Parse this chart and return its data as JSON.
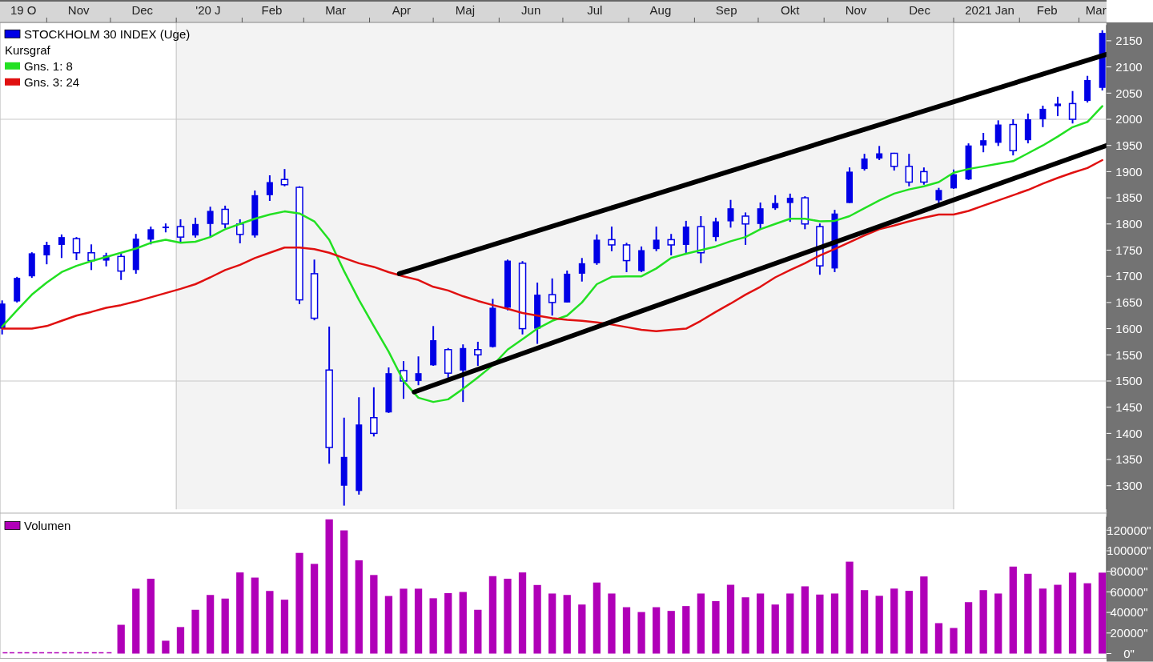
{
  "chart_data": [
    {
      "type": "candlestick",
      "annotations": [
        "Kursgraf"
      ],
      "x": [
        "2019-10-11",
        "2019-10-18",
        "2019-10-25",
        "2019-11-01",
        "2019-11-08",
        "2019-11-15",
        "2019-11-22",
        "2019-11-29",
        "2019-12-06",
        "2019-12-13",
        "2019-12-20",
        "2019-12-27",
        "2020-01-03",
        "2020-01-10",
        "2020-01-17",
        "2020-01-24",
        "2020-01-31",
        "2020-02-07",
        "2020-02-14",
        "2020-02-21",
        "2020-02-28",
        "2020-03-06",
        "2020-03-13",
        "2020-03-20",
        "2020-03-27",
        "2020-04-03",
        "2020-04-10",
        "2020-04-17",
        "2020-04-24",
        "2020-05-01",
        "2020-05-08",
        "2020-05-15",
        "2020-05-22",
        "2020-05-29",
        "2020-06-05",
        "2020-06-12",
        "2020-06-19",
        "2020-06-26",
        "2020-07-03",
        "2020-07-10",
        "2020-07-17",
        "2020-07-24",
        "2020-07-31",
        "2020-08-07",
        "2020-08-14",
        "2020-08-21",
        "2020-08-28",
        "2020-09-04",
        "2020-09-11",
        "2020-09-18",
        "2020-09-25",
        "2020-10-02",
        "2020-10-09",
        "2020-10-16",
        "2020-10-23",
        "2020-10-30",
        "2020-11-06",
        "2020-11-13",
        "2020-11-20",
        "2020-11-27",
        "2020-12-04",
        "2020-12-11",
        "2020-12-18",
        "2020-12-25",
        "2021-01-01",
        "2021-01-08",
        "2021-01-15",
        "2021-01-22",
        "2021-01-29",
        "2021-02-05",
        "2021-02-12",
        "2021-02-19",
        "2021-02-26",
        "2021-03-05",
        "2021-03-12"
      ],
      "series": [
        {
          "name": "STOCKHOLM 30 INDEX (Uge)",
          "color": "#0000e6",
          "ohlc": [
            [
              1600,
              1654,
              1589,
              1648
            ],
            [
              1652,
              1699,
              1650,
              1697
            ],
            [
              1700,
              1746,
              1697,
              1744
            ],
            [
              1740,
              1766,
              1723,
              1760
            ],
            [
              1760,
              1780,
              1735,
              1775
            ],
            [
              1772,
              1775,
              1731,
              1745
            ],
            [
              1745,
              1761,
              1712,
              1730
            ],
            [
              1730,
              1745,
              1719,
              1740
            ],
            [
              1738,
              1746,
              1693,
              1710
            ],
            [
              1712,
              1781,
              1705,
              1772
            ],
            [
              1770,
              1795,
              1761,
              1790
            ],
            [
              1792,
              1801,
              1784,
              1795
            ],
            [
              1795,
              1809,
              1766,
              1775
            ],
            [
              1778,
              1812,
              1774,
              1800
            ],
            [
              1800,
              1833,
              1774,
              1825
            ],
            [
              1828,
              1835,
              1792,
              1800
            ],
            [
              1800,
              1809,
              1763,
              1780
            ],
            [
              1778,
              1864,
              1774,
              1855
            ],
            [
              1855,
              1893,
              1844,
              1880
            ],
            [
              1885,
              1905,
              1872,
              1875
            ],
            [
              1870,
              1872,
              1647,
              1655
            ],
            [
              1705,
              1732,
              1616,
              1620
            ],
            [
              1521,
              1604,
              1342,
              1373
            ],
            [
              1300,
              1430,
              1262,
              1355
            ],
            [
              1290,
              1469,
              1283,
              1417
            ],
            [
              1430,
              1488,
              1394,
              1400
            ],
            [
              1440,
              1526,
              1439,
              1515
            ],
            [
              1520,
              1538,
              1466,
              1500
            ],
            [
              1500,
              1547,
              1492,
              1515
            ],
            [
              1530,
              1605,
              1529,
              1578
            ],
            [
              1560,
              1563,
              1503,
              1515
            ],
            [
              1520,
              1570,
              1460,
              1563
            ],
            [
              1560,
              1575,
              1529,
              1550
            ],
            [
              1565,
              1657,
              1564,
              1640
            ],
            [
              1640,
              1732,
              1635,
              1730
            ],
            [
              1725,
              1729,
              1589,
              1600
            ],
            [
              1600,
              1688,
              1571,
              1665
            ],
            [
              1665,
              1696,
              1625,
              1650
            ],
            [
              1650,
              1711,
              1650,
              1705
            ],
            [
              1705,
              1735,
              1690,
              1725
            ],
            [
              1725,
              1780,
              1722,
              1770
            ],
            [
              1770,
              1795,
              1748,
              1760
            ],
            [
              1760,
              1764,
              1708,
              1730
            ],
            [
              1710,
              1757,
              1708,
              1750
            ],
            [
              1752,
              1795,
              1748,
              1770
            ],
            [
              1770,
              1781,
              1740,
              1760
            ],
            [
              1760,
              1806,
              1743,
              1795
            ],
            [
              1795,
              1815,
              1725,
              1745
            ],
            [
              1775,
              1812,
              1767,
              1805
            ],
            [
              1805,
              1846,
              1793,
              1830
            ],
            [
              1815,
              1822,
              1760,
              1800
            ],
            [
              1800,
              1841,
              1789,
              1830
            ],
            [
              1830,
              1855,
              1827,
              1840
            ],
            [
              1840,
              1858,
              1804,
              1850
            ],
            [
              1850,
              1853,
              1790,
              1800
            ],
            [
              1795,
              1801,
              1703,
              1720
            ],
            [
              1715,
              1827,
              1708,
              1820
            ],
            [
              1840,
              1908,
              1840,
              1900
            ],
            [
              1905,
              1934,
              1902,
              1925
            ],
            [
              1925,
              1949,
              1922,
              1935
            ],
            [
              1935,
              1936,
              1902,
              1910
            ],
            [
              1910,
              1934,
              1872,
              1880
            ],
            [
              1900,
              1908,
              1875,
              1880
            ],
            [
              1845,
              1869,
              1836,
              1865
            ],
            [
              1868,
              1904,
              1867,
              1895
            ],
            [
              1885,
              1954,
              1884,
              1950
            ],
            [
              1950,
              1974,
              1937,
              1960
            ],
            [
              1955,
              1998,
              1949,
              1990
            ],
            [
              1990,
              2000,
              1931,
              1940
            ],
            [
              1960,
              2011,
              1954,
              2000
            ],
            [
              2000,
              2026,
              1985,
              2020
            ],
            [
              2025,
              2043,
              2006,
              2030
            ],
            [
              2030,
              2054,
              1992,
              2000
            ],
            [
              2035,
              2083,
              2032,
              2075
            ],
            [
              2060,
              2170,
              2055,
              2165
            ]
          ]
        },
        {
          "type": "line",
          "name": "Gns. 1: 8",
          "color": "#22e022",
          "values": [
            1604,
            1635,
            1665,
            1688,
            1708,
            1720,
            1729,
            1737,
            1745,
            1753,
            1764,
            1770,
            1764,
            1766,
            1775,
            1790,
            1800,
            1810,
            1818,
            1824,
            1820,
            1805,
            1770,
            1710,
            1655,
            1605,
            1556,
            1500,
            1468,
            1460,
            1465,
            1485,
            1507,
            1530,
            1560,
            1580,
            1600,
            1615,
            1625,
            1650,
            1685,
            1699,
            1700,
            1700,
            1715,
            1735,
            1743,
            1750,
            1757,
            1767,
            1775,
            1790,
            1800,
            1810,
            1810,
            1805,
            1806,
            1815,
            1830,
            1845,
            1858,
            1866,
            1872,
            1880,
            1898,
            1905,
            1910,
            1915,
            1920,
            1935,
            1950,
            1967,
            1985,
            1995,
            2025
          ]
        },
        {
          "type": "line",
          "name": "Gns. 3: 24",
          "color": "#e01010",
          "values": [
            1600,
            1600,
            1600,
            1605,
            1615,
            1625,
            1632,
            1640,
            1645,
            1652,
            1660,
            1668,
            1676,
            1685,
            1698,
            1712,
            1722,
            1735,
            1745,
            1755,
            1755,
            1752,
            1745,
            1735,
            1725,
            1718,
            1708,
            1700,
            1693,
            1680,
            1673,
            1662,
            1653,
            1645,
            1638,
            1630,
            1625,
            1620,
            1617,
            1615,
            1612,
            1608,
            1603,
            1598,
            1595,
            1598,
            1600,
            1615,
            1632,
            1648,
            1665,
            1680,
            1698,
            1712,
            1725,
            1740,
            1752,
            1765,
            1778,
            1790,
            1797,
            1805,
            1812,
            1818,
            1818,
            1825,
            1835,
            1845,
            1855,
            1865,
            1877,
            1888,
            1898,
            1907,
            1922
          ]
        },
        {
          "type": "line",
          "color": "#000000",
          "x": [
            "2020-04-15",
            "2021-03-14"
          ],
          "values": [
            1705,
            2124
          ]
        },
        {
          "type": "line",
          "color": "#000000",
          "x": [
            "2020-04-22",
            "2021-03-14"
          ],
          "values": [
            1479,
            1950
          ]
        }
      ],
      "xlim": [
        "2019-10-10",
        "2021-03-14"
      ],
      "xticks": [
        {
          "value": "2019-10-21",
          "label": "19 O"
        },
        {
          "value": "2019-11-01",
          "label": null
        },
        {
          "value": "2019-11-16",
          "label": "Nov"
        },
        {
          "value": "2019-12-01",
          "label": null
        },
        {
          "value": "2019-12-16",
          "label": "Dec"
        },
        {
          "value": "2020-01-01",
          "label": null
        },
        {
          "value": "2020-01-16",
          "label": "'20 J"
        },
        {
          "value": "2020-02-01",
          "label": null
        },
        {
          "value": "2020-02-15",
          "label": "Feb"
        },
        {
          "value": "2020-03-01",
          "label": null
        },
        {
          "value": "2020-03-16",
          "label": "Mar"
        },
        {
          "value": "2020-04-01",
          "label": null
        },
        {
          "value": "2020-04-16",
          "label": "Apr"
        },
        {
          "value": "2020-05-01",
          "label": null
        },
        {
          "value": "2020-05-16",
          "label": "Maj"
        },
        {
          "value": "2020-06-01",
          "label": null
        },
        {
          "value": "2020-06-16",
          "label": "Jun"
        },
        {
          "value": "2020-07-01",
          "label": null
        },
        {
          "value": "2020-07-16",
          "label": "Jul"
        },
        {
          "value": "2020-08-01",
          "label": null
        },
        {
          "value": "2020-08-16",
          "label": "Aug"
        },
        {
          "value": "2020-09-01",
          "label": null
        },
        {
          "value": "2020-09-16",
          "label": "Sep"
        },
        {
          "value": "2020-10-01",
          "label": null
        },
        {
          "value": "2020-10-16",
          "label": "Okt"
        },
        {
          "value": "2020-11-01",
          "label": null
        },
        {
          "value": "2020-11-16",
          "label": "Nov"
        },
        {
          "value": "2020-12-01",
          "label": null
        },
        {
          "value": "2020-12-16",
          "label": "Dec"
        },
        {
          "value": "2021-01-01",
          "label": null
        },
        {
          "value": "2021-01-18",
          "label": "2021 Jan"
        },
        {
          "value": "2021-02-01",
          "label": null
        },
        {
          "value": "2021-02-14",
          "label": "Feb"
        },
        {
          "value": "2021-03-01",
          "label": null
        },
        {
          "value": "2021-03-09",
          "label": "Mar"
        }
      ],
      "ylim": [
        1255,
        2180
      ],
      "yticks": [
        1300,
        1350,
        1400,
        1450,
        1500,
        1550,
        1600,
        1650,
        1700,
        1750,
        1800,
        1850,
        1900,
        1950,
        2000,
        2050,
        2100,
        2150
      ],
      "bands": [
        {
          "axis": "x",
          "from": "2020-01-01",
          "to": "2021-01-01",
          "color": "#f3f3f3"
        }
      ],
      "ref_lines": [
        {
          "axis": "x",
          "value": "2020-01-01",
          "color": "#c8c8c8"
        },
        {
          "axis": "x",
          "value": "2021-01-01",
          "color": "#c8c8c8"
        },
        {
          "axis": "y",
          "value": 1500,
          "color": "#c8c8c8"
        },
        {
          "axis": "y",
          "value": 2000,
          "color": "#c8c8c8"
        }
      ],
      "legend": "top left"
    },
    {
      "type": "bar",
      "x": [
        "2019-10-11",
        "2019-10-18",
        "2019-10-25",
        "2019-11-01",
        "2019-11-08",
        "2019-11-15",
        "2019-11-22",
        "2019-11-29",
        "2019-12-06",
        "2019-12-13",
        "2019-12-20",
        "2019-12-27",
        "2020-01-03",
        "2020-01-10",
        "2020-01-17",
        "2020-01-24",
        "2020-01-31",
        "2020-02-07",
        "2020-02-14",
        "2020-02-21",
        "2020-02-28",
        "2020-03-06",
        "2020-03-13",
        "2020-03-20",
        "2020-03-27",
        "2020-04-03",
        "2020-04-10",
        "2020-04-17",
        "2020-04-24",
        "2020-05-01",
        "2020-05-08",
        "2020-05-15",
        "2020-05-22",
        "2020-05-29",
        "2020-06-05",
        "2020-06-12",
        "2020-06-19",
        "2020-06-26",
        "2020-07-03",
        "2020-07-10",
        "2020-07-17",
        "2020-07-24",
        "2020-07-31",
        "2020-08-07",
        "2020-08-14",
        "2020-08-21",
        "2020-08-28",
        "2020-09-04",
        "2020-09-11",
        "2020-09-18",
        "2020-09-25",
        "2020-10-02",
        "2020-10-09",
        "2020-10-16",
        "2020-10-23",
        "2020-10-30",
        "2020-11-06",
        "2020-11-13",
        "2020-11-20",
        "2020-11-27",
        "2020-12-04",
        "2020-12-11",
        "2020-12-18",
        "2020-12-25",
        "2021-01-01",
        "2021-01-08",
        "2021-01-15",
        "2021-01-22",
        "2021-01-29",
        "2021-02-05",
        "2021-02-12",
        "2021-02-19",
        "2021-02-26",
        "2021-03-05",
        "2021-03-12"
      ],
      "series": [
        {
          "name": "Volumen",
          "color": "#b000b8",
          "values": [
            0,
            0,
            0,
            0,
            0,
            0,
            0,
            0,
            28000,
            63100,
            72800,
            12500,
            25800,
            42600,
            57000,
            53500,
            78900,
            73900,
            60900,
            52400,
            97900,
            87200,
            130500,
            119800,
            90700,
            76400,
            56000,
            63100,
            63100,
            53800,
            58800,
            59900,
            42600,
            75300,
            72800,
            78900,
            66700,
            58400,
            57000,
            47700,
            69100,
            58400,
            45100,
            40400,
            45100,
            41500,
            46200,
            58400,
            51000,
            66900,
            54700,
            58400,
            47700,
            58400,
            65400,
            57400,
            58400,
            89400,
            61700,
            56200,
            63200,
            61000,
            75000,
            29600,
            24900,
            50000,
            61700,
            58400,
            84600,
            77600,
            63200,
            66900,
            78700,
            68400,
            78700
          ]
        }
      ],
      "xlim": [
        "2019-10-10",
        "2021-03-14"
      ],
      "ylim": [
        0,
        133000
      ],
      "yticks": [
        {
          "value": 0,
          "label": "0\""
        },
        {
          "value": 20000,
          "label": "20000\""
        },
        {
          "value": 40000,
          "label": "40000\""
        },
        {
          "value": 60000,
          "label": "60000\""
        },
        {
          "value": 80000,
          "label": "80000\""
        },
        {
          "value": 100000,
          "label": "100000\""
        },
        {
          "value": 120000,
          "label": "120000\""
        }
      ],
      "tick_labels": "y",
      "legend": "top left"
    }
  ]
}
